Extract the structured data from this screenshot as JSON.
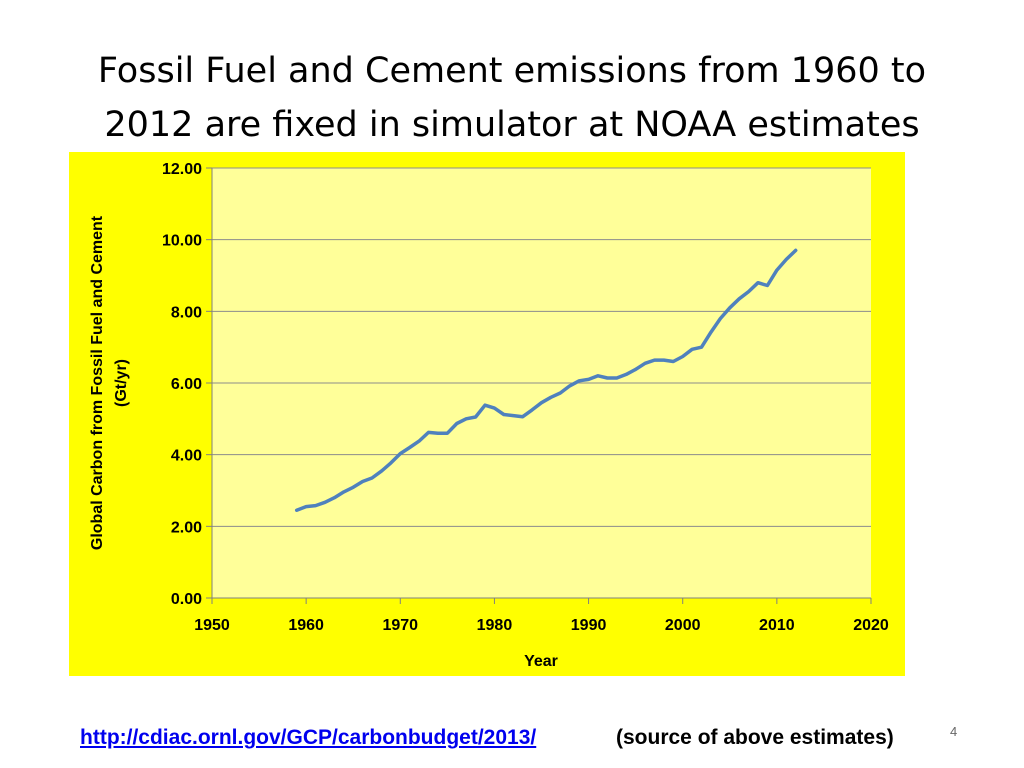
{
  "slide": {
    "title_line1": "Fossil Fuel and Cement emissions from 1960 to",
    "title_line2": "2012 are fixed in simulator at NOAA estimates",
    "link_text": "http://cdiac.ornl.gov/GCP/carbonbudget/2013/",
    "note": "(source of above estimates)",
    "number": "4"
  },
  "colors": {
    "chart_background": "#ffff00",
    "plot_background": "#ffff99",
    "line": "#4f81bd",
    "axis_text": "#000000"
  },
  "chart_data": {
    "type": "line",
    "title": "",
    "xlabel": "Year",
    "ylabel_line1": "Global Carbon from Fossil Fuel and Cement",
    "ylabel_line2": "(Gt/yr)",
    "xlim": [
      1950,
      2020
    ],
    "ylim": [
      0,
      12
    ],
    "x_ticks": [
      "1950",
      "1960",
      "1970",
      "1980",
      "1990",
      "2000",
      "2010",
      "2020"
    ],
    "y_ticks": [
      "0.00",
      "2.00",
      "4.00",
      "6.00",
      "8.00",
      "10.00",
      "12.00"
    ],
    "grid": "horizontal",
    "legend": "none",
    "series": [
      {
        "x": [
          1959,
          1960,
          1961,
          1962,
          1963,
          1964,
          1965,
          1966,
          1967,
          1968,
          1969,
          1970,
          1971,
          1972,
          1973,
          1974,
          1975,
          1976,
          1977,
          1978,
          1979,
          1980,
          1981,
          1982,
          1983,
          1984,
          1985,
          1986,
          1987,
          1988,
          1989,
          1990,
          1991,
          1992,
          1993,
          1994,
          1995,
          1996,
          1997,
          1998,
          1999,
          2000,
          2001,
          2002,
          2003,
          2004,
          2005,
          2006,
          2007,
          2008,
          2009,
          2010,
          2011,
          2012
        ],
        "y": [
          2.45,
          2.55,
          2.58,
          2.67,
          2.8,
          2.96,
          3.09,
          3.25,
          3.35,
          3.54,
          3.77,
          4.03,
          4.2,
          4.38,
          4.62,
          4.6,
          4.6,
          4.87,
          5.0,
          5.05,
          5.38,
          5.3,
          5.12,
          5.09,
          5.06,
          5.25,
          5.45,
          5.6,
          5.72,
          5.92,
          6.06,
          6.1,
          6.2,
          6.14,
          6.14,
          6.24,
          6.38,
          6.55,
          6.64,
          6.64,
          6.6,
          6.74,
          6.94,
          7.0,
          7.42,
          7.8,
          8.1,
          8.35,
          8.55,
          8.8,
          8.72,
          9.15,
          9.45,
          9.7
        ]
      }
    ]
  }
}
